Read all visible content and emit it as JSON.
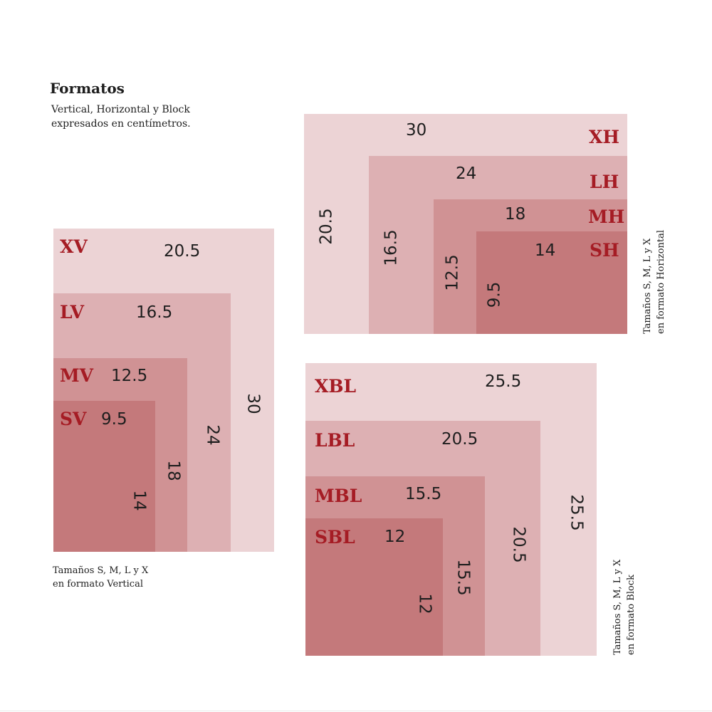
{
  "title": "Formatos",
  "subtitle": [
    "Vertical, Horizontal y Block",
    "expresados en centímetros."
  ],
  "colors": {
    "accent": "#a51c24",
    "shade_xl": "#ecd3d5",
    "shade_l": "#ddb0b3",
    "shade_m": "#d09294",
    "shade_s": "#c4797b"
  },
  "vertical": {
    "caption": [
      "Tamaños S, M, L y X",
      "en formato Vertical"
    ],
    "sizes": [
      {
        "code": "XV",
        "width": "20.5",
        "height": "30"
      },
      {
        "code": "LV",
        "width": "16.5",
        "height": "24"
      },
      {
        "code": "MV",
        "width": "12.5",
        "height": "18"
      },
      {
        "code": "SV",
        "width": "9.5",
        "height": "14"
      }
    ]
  },
  "horizontal": {
    "caption": [
      "Tamaños S, M, L y X",
      "en formato Horizontal"
    ],
    "sizes": [
      {
        "code": "XH",
        "width": "30",
        "height": "20.5"
      },
      {
        "code": "LH",
        "width": "24",
        "height": "16.5"
      },
      {
        "code": "MH",
        "width": "18",
        "height": "12.5"
      },
      {
        "code": "SH",
        "width": "14",
        "height": "9.5"
      }
    ]
  },
  "block": {
    "caption": [
      "Tamaños S, M, L y X",
      "en formato Block"
    ],
    "sizes": [
      {
        "code": "XBL",
        "width": "25.5",
        "height": "25.5"
      },
      {
        "code": "LBL",
        "width": "20.5",
        "height": "20.5"
      },
      {
        "code": "MBL",
        "width": "15.5",
        "height": "15.5"
      },
      {
        "code": "SBL",
        "width": "12",
        "height": "12"
      }
    ]
  }
}
